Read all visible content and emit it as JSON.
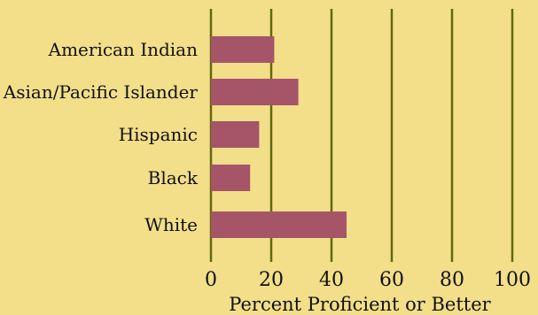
{
  "colors": {
    "background": "#f3de8a",
    "bar": "#a65468",
    "grid": "#5e6b0c"
  },
  "chart_data": {
    "type": "bar",
    "orientation": "horizontal",
    "title": "",
    "xlabel": "Percent Proficient or Better",
    "ylabel": "",
    "xlim": [
      0,
      100
    ],
    "xticks": [
      "0",
      "20",
      "40",
      "60",
      "80",
      "100"
    ],
    "categories": [
      "American Indian",
      "Asian/Pacific Islander",
      "Hispanic",
      "Black",
      "White"
    ],
    "values": [
      21,
      29,
      16,
      13,
      45
    ],
    "grid": true
  }
}
